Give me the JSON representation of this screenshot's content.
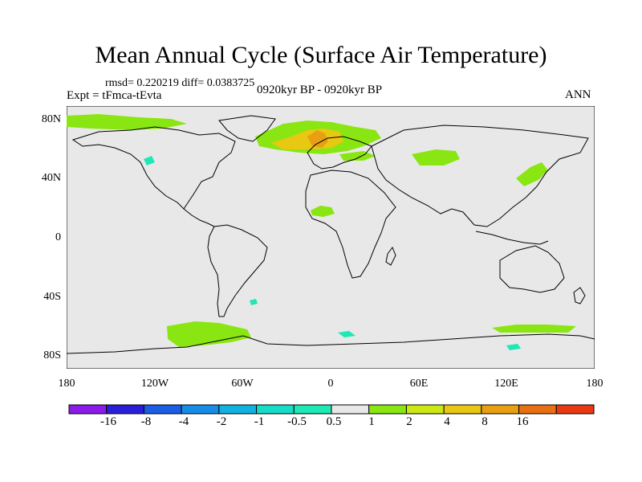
{
  "figure": {
    "title": "Mean Annual Cycle (Surface Air Temperature)",
    "stats": "rmsd= 0.220219 diff= 0.0383725",
    "experiment": "Expt = tFmca-tEvta",
    "period": "0920kyr BP - 0920kyr BP",
    "season": "ANN"
  },
  "map": {
    "projection": "cylindrical equidistant",
    "lon_range": [
      -180,
      180
    ],
    "lat_range": [
      -90,
      90
    ],
    "y_tick_labels": [
      "80N",
      "40N",
      "0",
      "40S",
      "80S"
    ],
    "x_tick_labels": [
      "180",
      "120W",
      "60W",
      "0",
      "60E",
      "120E",
      "180"
    ],
    "background_color": "#e8e8e8",
    "regions": [
      {
        "name": "Arctic north of Canada",
        "category": "0.5 to 1"
      },
      {
        "name": "Scandinavia / Barents Sea",
        "category": "2 to 4"
      },
      {
        "name": "Norway / Sweden core",
        "category": "4 to 8"
      },
      {
        "name": "Northern Europe",
        "category": "0.5 to 1"
      },
      {
        "name": "Central Siberia",
        "category": "0.5 to 1"
      },
      {
        "name": "Japan / Kuril region",
        "category": "0.5 to 1"
      },
      {
        "name": "West Africa / Sahel",
        "category": "0.5 to 1"
      },
      {
        "name": "West Antarctica / Weddell",
        "category": "0.5 to 1"
      },
      {
        "name": "East Antarctic coast",
        "category": "-1 to -0.5"
      }
    ]
  },
  "colorbar": {
    "labels": [
      "-16",
      "-8",
      "-4",
      "-2",
      "-1",
      "-0.5",
      "0.5",
      "1",
      "2",
      "4",
      "8",
      "16"
    ],
    "colors": [
      "#8a1be8",
      "#2a1fd8",
      "#1a5ee6",
      "#168ee8",
      "#12b2e0",
      "#17dcc8",
      "#1ee8b4",
      "#e8e8e8",
      "#8ae612",
      "#cce812",
      "#e8c812",
      "#e8a012",
      "#e87012",
      "#e83a12"
    ]
  }
}
